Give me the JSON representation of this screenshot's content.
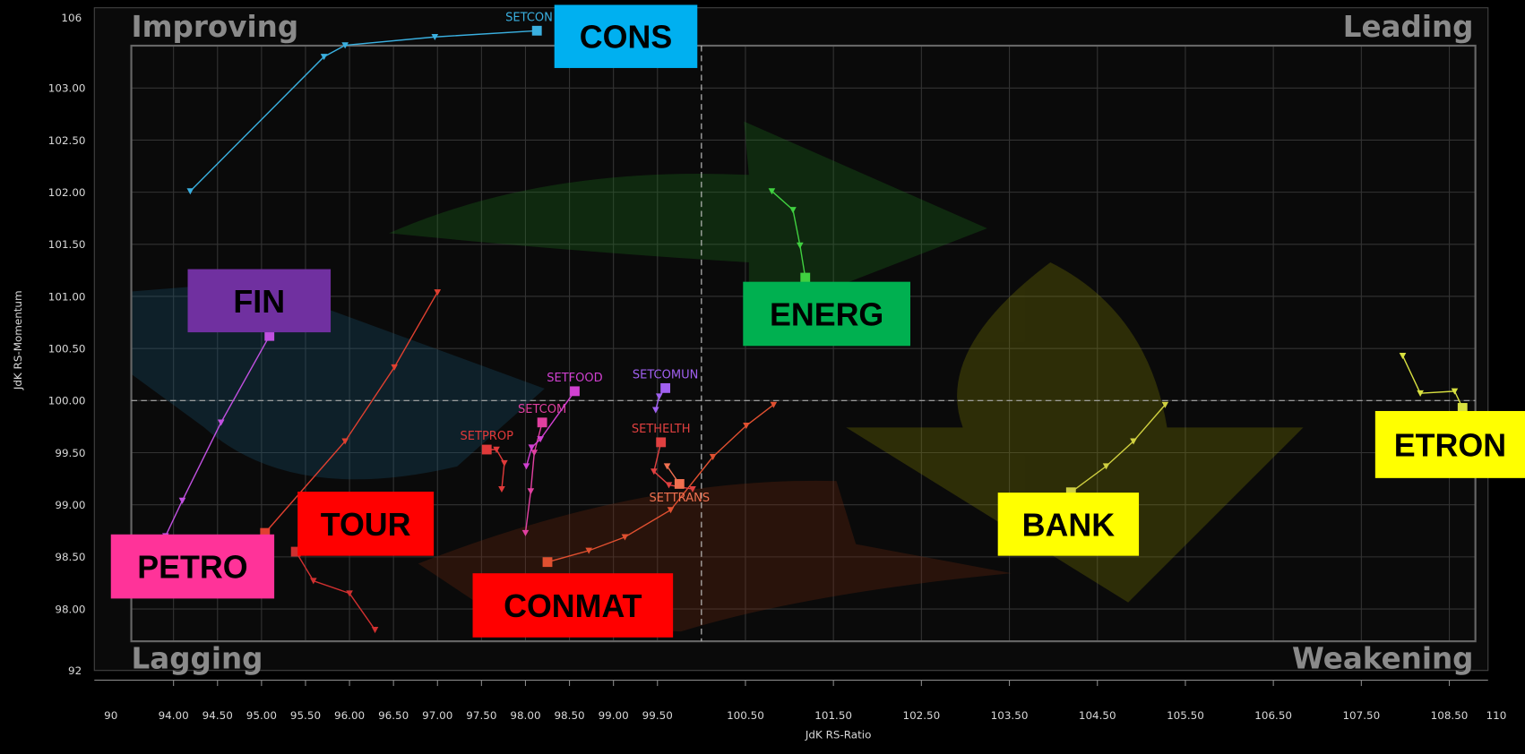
{
  "chart_data": {
    "type": "rrg",
    "xlabel": "JdK RS-Ratio",
    "ylabel": "JdK RS-Momentum",
    "quadrants": {
      "top_left": "Improving",
      "top_right": "Leading",
      "bottom_left": "Lagging",
      "bottom_right": "Weakening"
    },
    "x_break_labels": [
      "90",
      "110"
    ],
    "y_break_labels": [
      "106",
      "92"
    ],
    "xlim": [
      93.1,
      108.94
    ],
    "ylim": [
      97.41,
      103.77
    ],
    "xcenter": 100,
    "ycenter": 100,
    "grid": true,
    "xticks": [
      {
        "value": 94,
        "label": "94.00"
      },
      {
        "value": 94.5,
        "label": "94.50"
      },
      {
        "value": 95,
        "label": "95.00"
      },
      {
        "value": 95.5,
        "label": "95.50"
      },
      {
        "value": 96,
        "label": "96.00"
      },
      {
        "value": 96.5,
        "label": "96.50"
      },
      {
        "value": 97,
        "label": "97.00"
      },
      {
        "value": 97.5,
        "label": "97.50"
      },
      {
        "value": 98,
        "label": "98.00"
      },
      {
        "value": 98.5,
        "label": "98.50"
      },
      {
        "value": 99,
        "label": "99.00"
      },
      {
        "value": 99.5,
        "label": "99.50"
      },
      {
        "value": 100.5,
        "label": "100.50"
      },
      {
        "value": 101.5,
        "label": "101.50"
      },
      {
        "value": 102.5,
        "label": "102.50"
      },
      {
        "value": 103.5,
        "label": "103.50"
      },
      {
        "value": 104.5,
        "label": "104.50"
      },
      {
        "value": 105.5,
        "label": "105.50"
      },
      {
        "value": 106.5,
        "label": "106.50"
      },
      {
        "value": 107.5,
        "label": "107.50"
      },
      {
        "value": 108.5,
        "label": "108.50"
      }
    ],
    "yticks": [
      {
        "value": 98,
        "label": "98.00"
      },
      {
        "value": 98.5,
        "label": "98.50"
      },
      {
        "value": 99,
        "label": "99.00"
      },
      {
        "value": 99.5,
        "label": "99.50"
      },
      {
        "value": 100,
        "label": "100.00"
      },
      {
        "value": 100.5,
        "label": "100.50"
      },
      {
        "value": 101,
        "label": "101.00"
      },
      {
        "value": 101.5,
        "label": "101.50"
      },
      {
        "value": 102,
        "label": "102.00"
      },
      {
        "value": 102.5,
        "label": "102.50"
      },
      {
        "value": 103,
        "label": "103.00"
      }
    ],
    "series": [
      {
        "name": "CONS",
        "tag": "SETCON",
        "color": "#3ab0e0",
        "box_color": "#00b0f0",
        "x": [
          94.19,
          95.71,
          95.95,
          96.97,
          98.13
        ],
        "y": [
          102.01,
          103.3,
          103.41,
          103.49,
          103.55
        ]
      },
      {
        "name": "ENERG",
        "color": "#40d040",
        "box_color": "#00b050",
        "x": [
          100.8,
          101.04,
          101.12,
          101.18
        ],
        "y": [
          102.01,
          101.83,
          101.49,
          101.18
        ]
      },
      {
        "name": "BANK",
        "color": "#d0d040",
        "box_color": "#ffff00",
        "x": [
          105.27,
          104.91,
          104.6,
          104.2
        ],
        "y": [
          99.96,
          99.61,
          99.37,
          99.12
        ]
      },
      {
        "name": "ETRON",
        "color": "#d8e040",
        "box_color": "#ffff00",
        "x": [
          107.97,
          108.17,
          108.56,
          108.65
        ],
        "y": [
          100.43,
          100.07,
          100.09,
          99.93
        ]
      },
      {
        "name": "FIN",
        "color": "#c050e0",
        "box_color": "#7030a0",
        "x": [
          93.91,
          94.1,
          94.54,
          95.09
        ],
        "y": [
          98.7,
          99.04,
          99.79,
          100.62
        ]
      },
      {
        "name": "PETRO",
        "color": "#e04030",
        "box_color": "#ff3399",
        "x": [
          97.0,
          96.51,
          95.95,
          95.04
        ],
        "y": [
          101.04,
          100.32,
          99.61,
          98.73
        ]
      },
      {
        "name": "TOUR",
        "color": "#d03030",
        "box_color": "#ff0000",
        "x": [
          96.29,
          96.0,
          95.59,
          95.39
        ],
        "y": [
          97.8,
          98.15,
          98.27,
          98.55
        ]
      },
      {
        "name": "CONMAT",
        "color": "#e05030",
        "box_color": "#ff0000",
        "x": [
          100.82,
          100.51,
          100.13,
          99.65,
          99.13,
          98.72,
          98.25
        ],
        "y": [
          99.96,
          99.76,
          99.46,
          98.95,
          98.69,
          98.56,
          98.45
        ]
      },
      {
        "name": "SETHELTH",
        "color": "#e04040",
        "x": [
          99.9,
          99.63,
          99.46,
          99.54
        ],
        "y": [
          99.15,
          99.19,
          99.32,
          99.6
        ]
      },
      {
        "name": "SETTRANS",
        "color": "#f07050",
        "x": [
          99.61,
          99.75
        ],
        "y": [
          99.37,
          99.2
        ]
      },
      {
        "name": "SETPROP",
        "color": "#e03a3a",
        "x": [
          97.73,
          97.76,
          97.67,
          97.56
        ],
        "y": [
          99.15,
          99.4,
          99.53,
          99.53
        ]
      },
      {
        "name": "SETCOM",
        "color": "#e040a0",
        "x": [
          98.0,
          98.06,
          98.1,
          98.19
        ],
        "y": [
          98.73,
          99.13,
          99.5,
          99.79
        ]
      },
      {
        "name": "SETFOOD",
        "color": "#d040d0",
        "x": [
          98.01,
          98.07,
          98.17,
          98.56
        ],
        "y": [
          99.37,
          99.55,
          99.63,
          100.09
        ]
      },
      {
        "name": "SETCOMUN",
        "color": "#a060f0",
        "x": [
          99.48,
          99.52,
          99.59
        ],
        "y": [
          99.91,
          100.04,
          100.12
        ]
      }
    ]
  }
}
